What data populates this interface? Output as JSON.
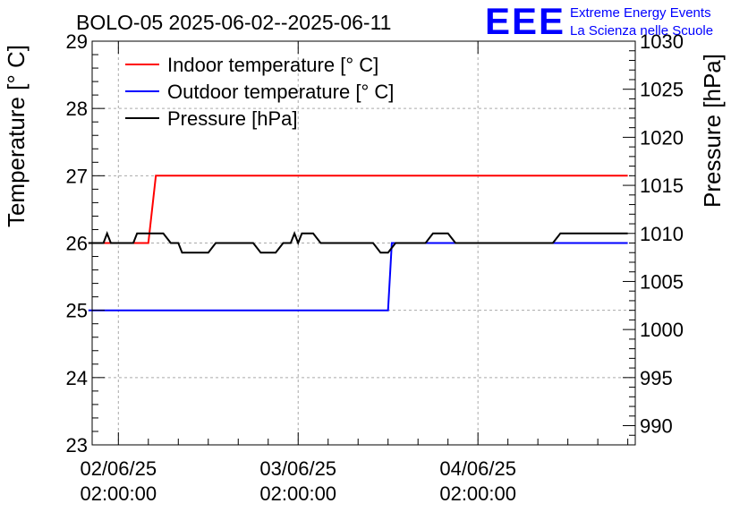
{
  "chart_data": {
    "type": "line",
    "title": "BOLO-05 2025-06-02--2025-06-11",
    "ylabel": "Temperature [° C]",
    "y2label": "Pressure [hPa]",
    "ylim": [
      23,
      29
    ],
    "y2lim": [
      988,
      1030
    ],
    "yticks": [
      "23",
      "24",
      "25",
      "26",
      "27",
      "28",
      "29"
    ],
    "y2ticks": [
      "990",
      "995",
      "1000",
      "1005",
      "1010",
      "1015",
      "1020",
      "1025",
      "1030"
    ],
    "xlim": [
      "2025-06-01 22:30",
      "2025-06-04 23:00"
    ],
    "xticks": [
      {
        "t": "2025-06-02 02:00",
        "line1": "02/06/25",
        "line2": "02:00:00"
      },
      {
        "t": "2025-06-03 02:00",
        "line1": "03/06/25",
        "line2": "02:00:00"
      },
      {
        "t": "2025-06-04 02:00",
        "line1": "04/06/25",
        "line2": "02:00:00"
      }
    ],
    "grid": true,
    "legend_position": "top-left",
    "series": [
      {
        "name": "Indoor temperature [° C]",
        "color": "#ff0000",
        "axis": "left",
        "points": [
          [
            "2025-06-01 22:00",
            26
          ],
          [
            "2025-06-02 06:00",
            26
          ],
          [
            "2025-06-02 07:00",
            27
          ],
          [
            "2025-06-04 22:00",
            27
          ]
        ]
      },
      {
        "name": "Outdoor temperature [° C]",
        "color": "#0000ff",
        "axis": "left",
        "points": [
          [
            "2025-06-01 22:00",
            25
          ],
          [
            "2025-06-03 14:00",
            25
          ],
          [
            "2025-06-03 14:30",
            26
          ],
          [
            "2025-06-04 22:00",
            26
          ]
        ]
      },
      {
        "name": "Pressure [hPa]",
        "color": "#000000",
        "axis": "right",
        "points": [
          [
            "2025-06-01 22:00",
            1009
          ],
          [
            "2025-06-02 00:00",
            1009
          ],
          [
            "2025-06-02 00:30",
            1010
          ],
          [
            "2025-06-02 01:00",
            1009
          ],
          [
            "2025-06-02 04:00",
            1009
          ],
          [
            "2025-06-02 04:30",
            1010
          ],
          [
            "2025-06-02 08:00",
            1010
          ],
          [
            "2025-06-02 09:00",
            1009
          ],
          [
            "2025-06-02 10:00",
            1009
          ],
          [
            "2025-06-02 10:30",
            1008
          ],
          [
            "2025-06-02 14:00",
            1008
          ],
          [
            "2025-06-02 15:00",
            1009
          ],
          [
            "2025-06-02 20:00",
            1009
          ],
          [
            "2025-06-02 21:00",
            1008
          ],
          [
            "2025-06-02 23:00",
            1008
          ],
          [
            "2025-06-03 00:00",
            1009
          ],
          [
            "2025-06-03 01:00",
            1009
          ],
          [
            "2025-06-03 01:30",
            1010
          ],
          [
            "2025-06-03 02:00",
            1009
          ],
          [
            "2025-06-03 02:30",
            1010
          ],
          [
            "2025-06-03 04:00",
            1010
          ],
          [
            "2025-06-03 05:00",
            1009
          ],
          [
            "2025-06-03 12:00",
            1009
          ],
          [
            "2025-06-03 13:00",
            1008
          ],
          [
            "2025-06-03 14:00",
            1008
          ],
          [
            "2025-06-03 15:00",
            1009
          ],
          [
            "2025-06-03 19:00",
            1009
          ],
          [
            "2025-06-03 20:00",
            1010
          ],
          [
            "2025-06-03 22:00",
            1010
          ],
          [
            "2025-06-03 23:00",
            1009
          ],
          [
            "2025-06-04 12:00",
            1009
          ],
          [
            "2025-06-04 13:00",
            1010
          ],
          [
            "2025-06-04 22:00",
            1010
          ]
        ]
      }
    ]
  },
  "logo": {
    "mark": "EEE",
    "line1": "Extreme Energy Events",
    "line2": "La Scienza nelle Scuole",
    "color": "#0000ff"
  }
}
